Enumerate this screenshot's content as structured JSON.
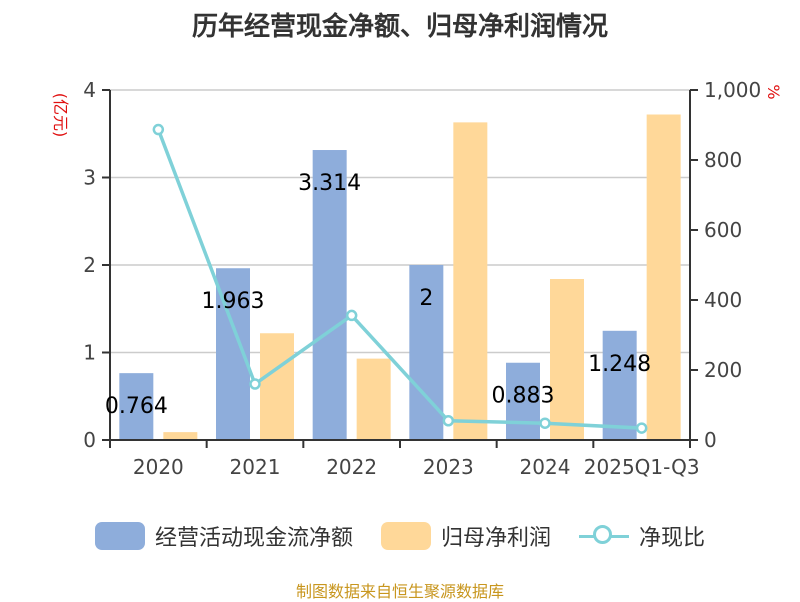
{
  "title": "历年经营现金净额、归母净利润情况",
  "source_note": "制图数据来自恒生聚源数据库",
  "chart_data": {
    "type": "bar",
    "categories": [
      "2020",
      "2021",
      "2022",
      "2023",
      "2024",
      "2025Q1-Q3"
    ],
    "left_axis": {
      "unit": "(亿元)",
      "ylim": [
        0,
        4
      ],
      "ticks": [
        "0",
        "1",
        "2",
        "3",
        "4"
      ]
    },
    "right_axis": {
      "unit": "%",
      "ylim": [
        0,
        1000
      ],
      "ticks": [
        "0",
        "200",
        "400",
        "600",
        "800",
        "1,000"
      ]
    },
    "series": [
      {
        "name": "经营活动现金流净额",
        "type": "bar",
        "axis": "left",
        "color": "#8eaddb",
        "values": [
          0.764,
          1.963,
          3.314,
          2,
          0.883,
          1.248
        ],
        "labels": [
          "0.764",
          "1.963",
          "3.314",
          "2",
          "0.883",
          "1.248"
        ]
      },
      {
        "name": "归母净利润",
        "type": "bar",
        "axis": "left",
        "color": "#ffd899",
        "values": [
          0.09,
          1.22,
          0.93,
          3.63,
          1.84,
          3.72
        ]
      },
      {
        "name": "净现比",
        "type": "line",
        "axis": "right",
        "color": "#7fd1d8",
        "values": [
          887,
          160,
          356,
          55,
          48,
          34
        ]
      }
    ],
    "grid": true,
    "legend_position": "bottom"
  }
}
